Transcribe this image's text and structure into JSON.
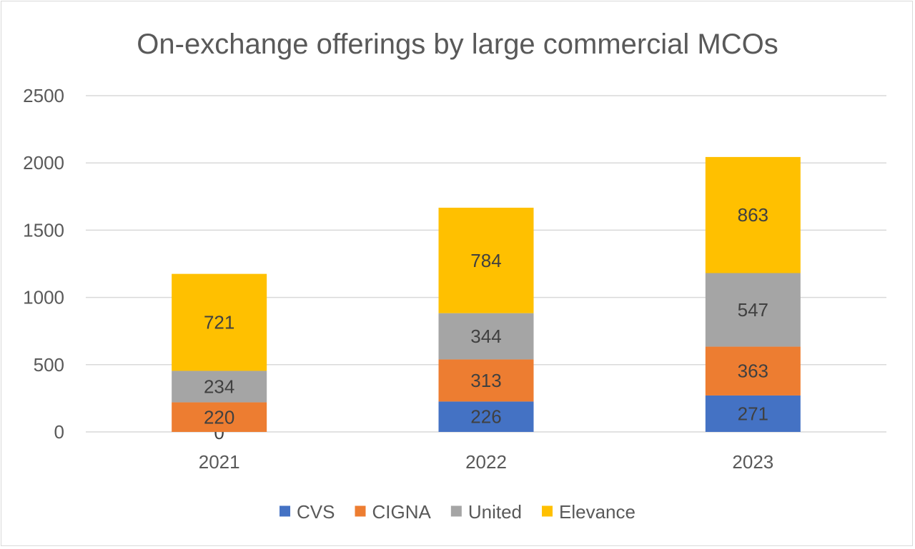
{
  "chart_data": {
    "type": "bar",
    "stacked": true,
    "title": "On-exchange offerings by large commercial MCOs",
    "xlabel": "",
    "ylabel": "",
    "categories": [
      "2021",
      "2022",
      "2023"
    ],
    "ylim": [
      0,
      2500
    ],
    "yticks": [
      0,
      500,
      1000,
      1500,
      2000,
      2500
    ],
    "grid": true,
    "legend_position": "bottom",
    "series": [
      {
        "name": "CVS",
        "values": [
          0,
          226,
          271
        ],
        "color": "#4472C4"
      },
      {
        "name": "CIGNA",
        "values": [
          220,
          313,
          363
        ],
        "color": "#ED7D31"
      },
      {
        "name": "United",
        "values": [
          234,
          344,
          547
        ],
        "color": "#A5A5A5"
      },
      {
        "name": "Elevance",
        "values": [
          721,
          784,
          863
        ],
        "color": "#FFC000"
      }
    ]
  }
}
